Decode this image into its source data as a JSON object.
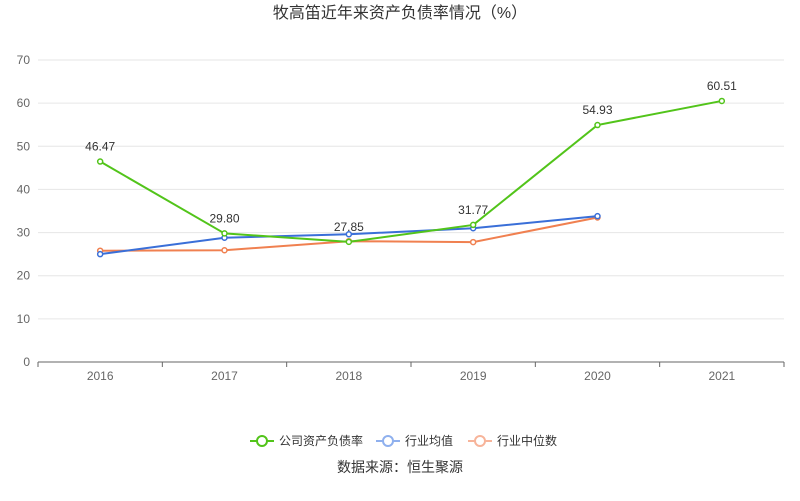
{
  "chart_data": {
    "type": "line",
    "title": "牧高笛近年来资产负债率情况（%）",
    "categories": [
      "2016",
      "2017",
      "2018",
      "2019",
      "2020",
      "2021"
    ],
    "ylim": [
      0,
      70
    ],
    "yticks": [
      0,
      10,
      20,
      30,
      40,
      50,
      60,
      70
    ],
    "grid": true,
    "legend_position": "bottom",
    "series": [
      {
        "name": "公司资产负债率",
        "color": "#52c41a",
        "values": [
          46.47,
          29.8,
          27.85,
          31.77,
          54.93,
          60.51
        ],
        "labels": [
          "46.47",
          "29.80",
          "27.85",
          "31.77",
          "54.93",
          "60.51"
        ]
      },
      {
        "name": "行业均值",
        "color": "#3a6fd8",
        "values": [
          25.0,
          28.8,
          29.6,
          31.0,
          33.8,
          null
        ]
      },
      {
        "name": "行业中位数",
        "color": "#f08050",
        "values": [
          25.8,
          25.9,
          28.0,
          27.8,
          33.5,
          null
        ]
      }
    ],
    "legend_colors": [
      "#52c41a",
      "#8fb0ee",
      "#f7b49a"
    ],
    "source": "数据来源：恒生聚源"
  }
}
